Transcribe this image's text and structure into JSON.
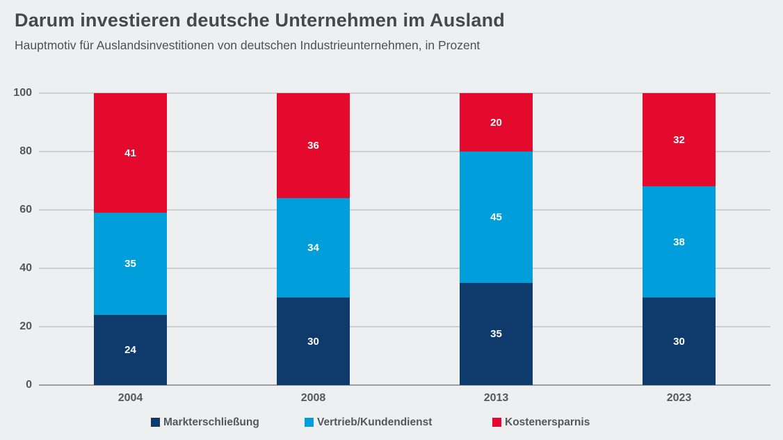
{
  "header": {
    "title": "Darum investieren deutsche Unternehmen im Ausland",
    "subtitle": "Hauptmotiv für Auslandsinvestitionen von deutschen Industrieunternehmen, in Prozent"
  },
  "colors": {
    "background": "#edeff0",
    "title_text": "#45494c",
    "subtitle_text": "#4c5153",
    "axis_text": "#54585a",
    "gridline": "#cdd0d1",
    "zero_line": "#9a9ea0",
    "value_label_text": "#ffffff"
  },
  "chart_data": {
    "type": "bar",
    "stacked": true,
    "title": "Darum investieren deutsche Unternehmen im Ausland",
    "subtitle": "Hauptmotiv für Auslandsinvestitionen von deutschen Industrieunternehmen, in Prozent",
    "categories": [
      "2004",
      "2008",
      "2013",
      "2023"
    ],
    "series": [
      {
        "name": "Markterschließung",
        "color": "#0e3a6c",
        "values": [
          24,
          30,
          35,
          30
        ]
      },
      {
        "name": "Vertrieb/Kundendienst",
        "color": "#009fdb",
        "values": [
          35,
          34,
          45,
          38
        ]
      },
      {
        "name": "Kostenersparnis",
        "color": "#e40a2e",
        "values": [
          41,
          36,
          20,
          32
        ]
      }
    ],
    "xlabel": "",
    "ylabel": "",
    "ylim": [
      0,
      100
    ],
    "yticks": [
      0,
      20,
      40,
      60,
      80,
      100
    ],
    "grid": true,
    "legend_position": "bottom",
    "value_labels": "inside-white"
  }
}
